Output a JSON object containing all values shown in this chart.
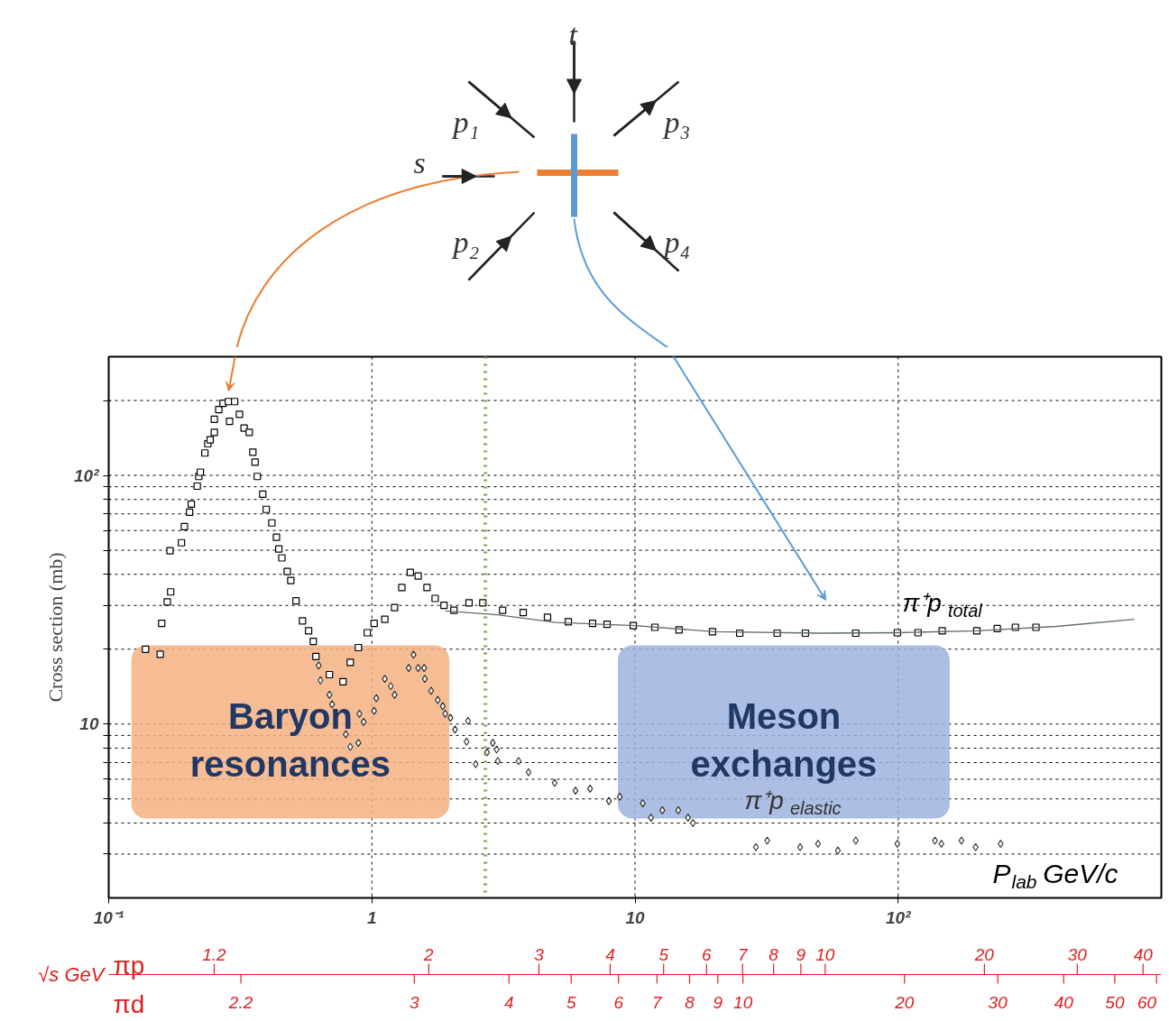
{
  "chart_data": {
    "type": "scatter",
    "ylabel": "Cross section (mb)",
    "xlabel": "P$_{lab}$ GeV/c",
    "xlim": [
      0.1,
      1000
    ],
    "ylim": [
      2,
      300
    ],
    "xticks": [
      {
        "value": 0.1,
        "label": "10⁻¹"
      },
      1,
      10,
      {
        "value": 100,
        "label": "10²"
      }
    ],
    "yticks": [
      {
        "value": 3,
        "label": null
      },
      {
        "value": 4,
        "label": null
      },
      {
        "value": 5,
        "label": null
      },
      {
        "value": 6,
        "label": null
      },
      {
        "value": 7,
        "label": null
      },
      {
        "value": 8,
        "label": null
      },
      {
        "value": 9,
        "label": null
      },
      10,
      {
        "value": 20,
        "label": null
      },
      {
        "value": 30,
        "label": null
      },
      {
        "value": 40,
        "label": null
      },
      {
        "value": 50,
        "label": null
      },
      {
        "value": 60,
        "label": null
      },
      {
        "value": 70,
        "label": null
      },
      {
        "value": 80,
        "label": null
      },
      {
        "value": 90,
        "label": null
      },
      {
        "value": 100,
        "label": "10²"
      },
      {
        "value": 200,
        "label": null
      }
    ],
    "log": "xy",
    "grid": true,
    "series": [
      {
        "name": "π⁺p$_{total}$",
        "marker": "square",
        "color": "#000000",
        "x": [
          0.138,
          0.157,
          0.159,
          0.167,
          0.172,
          0.171,
          0.189,
          0.194,
          0.203,
          0.206,
          0.217,
          0.22,
          0.223,
          0.232,
          0.238,
          0.243,
          0.252,
          0.252,
          0.262,
          0.272,
          0.285,
          0.301,
          0.288,
          0.314,
          0.327,
          0.342,
          0.353,
          0.36,
          0.367,
          0.385,
          0.397,
          0.417,
          0.434,
          0.443,
          0.455,
          0.477,
          0.492,
          0.515,
          0.545,
          0.575,
          0.599,
          0.613,
          0.69,
          0.777,
          0.828,
          0.889,
          0.961,
          1.02,
          1.12,
          1.22,
          1.3,
          1.4,
          1.5,
          1.62,
          1.74,
          1.88,
          2.05,
          2.34,
          2.64,
          3.14,
          3.76,
          4.65,
          5.58,
          6.9,
          7.83,
          9.85,
          11.9,
          14.7,
          19.7,
          25.0,
          34.7,
          44.4,
          69.0,
          99.3,
          119,
          147,
          199,
          238,
          279,
          334
        ],
        "values": [
          20,
          19.1,
          25.4,
          31,
          34,
          49.8,
          53.6,
          62.2,
          71.1,
          76.6,
          90.5,
          99,
          103,
          123,
          134,
          139,
          149,
          168,
          184,
          195,
          198,
          198,
          165,
          176,
          155,
          149,
          124,
          113,
          99,
          84,
          73,
          64.4,
          56.4,
          50.6,
          46.6,
          41.1,
          37.8,
          31.3,
          26.0,
          23.7,
          21.5,
          18.7,
          15.8,
          14.8,
          17.7,
          20.3,
          23.3,
          25.4,
          26.4,
          29.4,
          35.4,
          40.7,
          39.4,
          35.4,
          32.0,
          30.0,
          28.7,
          30.7,
          30.7,
          28.7,
          28.1,
          26.9,
          25.8,
          25.4,
          25.2,
          24.9,
          24.5,
          23.9,
          23.5,
          23.2,
          23.2,
          23.2,
          23.2,
          23.3,
          23.3,
          23.7,
          23.7,
          24.2,
          24.5,
          24.5
        ]
      },
      {
        "type": "line",
        "color": "#5f6f5f",
        "x": [
          1.9,
          3,
          5,
          10,
          20,
          50,
          100,
          200,
          400,
          789
        ],
        "values": [
          28.5,
          27.5,
          25.6,
          24.9,
          23.5,
          23.2,
          23.3,
          23.7,
          24.7,
          26.4
        ]
      },
      {
        "name": "π⁺p$_{elastic}$",
        "marker": "diamond",
        "color": "#333333",
        "x": [
          0.628,
          0.638,
          0.69,
          0.706,
          0.796,
          0.828,
          0.889,
          0.897,
          0.931,
          1.02,
          1.04,
          1.12,
          1.18,
          1.22,
          1.38,
          1.44,
          1.5,
          1.58,
          1.59,
          1.68,
          1.78,
          1.86,
          1.9,
          1.99,
          2.07,
          2.32,
          2.29,
          2.48,
          2.74,
          2.88,
          2.98,
          3.01,
          3.61,
          3.94,
          4.95,
          5.94,
          6.75,
          7.96,
          8.75,
          10.7,
          11.5,
          12.7,
          14.6,
          15.9,
          16.6,
          28.8,
          31.8,
          42.4,
          49.6,
          59.0,
          69.0,
          99.3,
          138,
          146,
          174,
          197,
          245
        ],
        "values": [
          17.2,
          15.0,
          13.1,
          12.0,
          9.1,
          8.1,
          8.4,
          11.0,
          10.2,
          11.3,
          12.7,
          15.2,
          14.2,
          13.1,
          16.8,
          19.0,
          16.8,
          16.8,
          15.2,
          13.6,
          12.5,
          11.8,
          11.0,
          10.6,
          9.5,
          10.3,
          8.5,
          6.9,
          7.7,
          8.4,
          7.9,
          7.1,
          7.1,
          6.4,
          5.8,
          5.4,
          5.5,
          4.9,
          5.1,
          4.8,
          4.2,
          4.5,
          4.5,
          4.2,
          4.0,
          3.2,
          3.4,
          3.2,
          3.3,
          3.1,
          3.4,
          3.3,
          3.4,
          3.3,
          3.4,
          3.2,
          3.3
        ]
      }
    ],
    "bands": [
      {
        "axis": "x",
        "from": 0.122,
        "to": 1.97,
        "label": "Baryon resonances",
        "color": "#f4b183"
      },
      {
        "axis": "x",
        "from": 8.61,
        "to": 157,
        "label": "Meson exchanges",
        "color": "#9db3de"
      }
    ],
    "ref_lines": [
      {
        "axis": "x",
        "value": 2.7,
        "color": "#70ad47",
        "line_style": "dotted"
      }
    ],
    "annotations": [
      "√s GeV",
      "t",
      "p₁",
      "p₃",
      "s",
      "p₂",
      "p₄",
      "πp",
      "1.2",
      "2",
      "3",
      "4",
      "5",
      "6",
      "7",
      "8",
      "9",
      "10",
      "20",
      "30",
      "40",
      "πd",
      "2.2",
      "3",
      "4",
      "5",
      "6",
      "7",
      "8",
      "9",
      "10",
      "20",
      "30",
      "40",
      "50",
      "60"
    ]
  }
}
